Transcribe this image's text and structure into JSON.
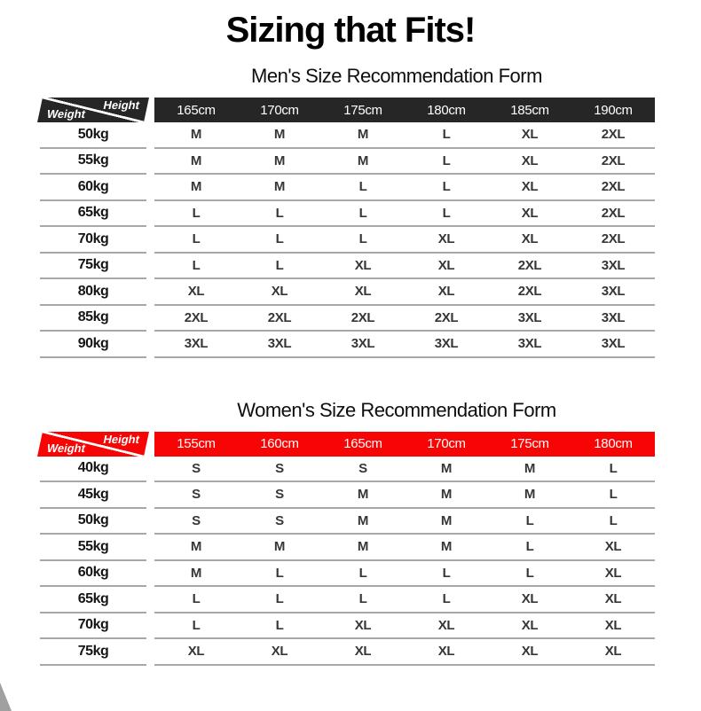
{
  "page": {
    "title": "Sizing that Fits!"
  },
  "colors": {
    "men_header": "#262626",
    "women_header": "#f70505",
    "divider": "#a8a8a8"
  },
  "men": {
    "title": "Men's Size Recommendation Form",
    "corner": {
      "weight_label": "Weight",
      "height_label": "Height"
    },
    "heights": [
      "165cm",
      "170cm",
      "175cm",
      "180cm",
      "185cm",
      "190cm"
    ],
    "rows": [
      {
        "weight": "50kg",
        "sizes": [
          "M",
          "M",
          "M",
          "L",
          "XL",
          "2XL"
        ]
      },
      {
        "weight": "55kg",
        "sizes": [
          "M",
          "M",
          "M",
          "L",
          "XL",
          "2XL"
        ]
      },
      {
        "weight": "60kg",
        "sizes": [
          "M",
          "M",
          "L",
          "L",
          "XL",
          "2XL"
        ]
      },
      {
        "weight": "65kg",
        "sizes": [
          "L",
          "L",
          "L",
          "L",
          "XL",
          "2XL"
        ]
      },
      {
        "weight": "70kg",
        "sizes": [
          "L",
          "L",
          "L",
          "XL",
          "XL",
          "2XL"
        ]
      },
      {
        "weight": "75kg",
        "sizes": [
          "L",
          "L",
          "XL",
          "XL",
          "2XL",
          "3XL"
        ]
      },
      {
        "weight": "80kg",
        "sizes": [
          "XL",
          "XL",
          "XL",
          "XL",
          "2XL",
          "3XL"
        ]
      },
      {
        "weight": "85kg",
        "sizes": [
          "2XL",
          "2XL",
          "2XL",
          "2XL",
          "3XL",
          "3XL"
        ]
      },
      {
        "weight": "90kg",
        "sizes": [
          "3XL",
          "3XL",
          "3XL",
          "3XL",
          "3XL",
          "3XL"
        ]
      }
    ]
  },
  "women": {
    "title": "Women's Size Recommendation Form",
    "corner": {
      "weight_label": "Weight",
      "height_label": "Height"
    },
    "heights": [
      "155cm",
      "160cm",
      "165cm",
      "170cm",
      "175cm",
      "180cm"
    ],
    "rows": [
      {
        "weight": "40kg",
        "sizes": [
          "S",
          "S",
          "S",
          "M",
          "M",
          "L"
        ]
      },
      {
        "weight": "45kg",
        "sizes": [
          "S",
          "S",
          "M",
          "M",
          "M",
          "L"
        ]
      },
      {
        "weight": "50kg",
        "sizes": [
          "S",
          "S",
          "M",
          "M",
          "L",
          "L"
        ]
      },
      {
        "weight": "55kg",
        "sizes": [
          "M",
          "M",
          "M",
          "M",
          "L",
          "XL"
        ]
      },
      {
        "weight": "60kg",
        "sizes": [
          "M",
          "L",
          "L",
          "L",
          "L",
          "XL"
        ]
      },
      {
        "weight": "65kg",
        "sizes": [
          "L",
          "L",
          "L",
          "L",
          "XL",
          "XL"
        ]
      },
      {
        "weight": "70kg",
        "sizes": [
          "L",
          "L",
          "XL",
          "XL",
          "XL",
          "XL"
        ]
      },
      {
        "weight": "75kg",
        "sizes": [
          "XL",
          "XL",
          "XL",
          "XL",
          "XL",
          "XL"
        ]
      }
    ]
  }
}
